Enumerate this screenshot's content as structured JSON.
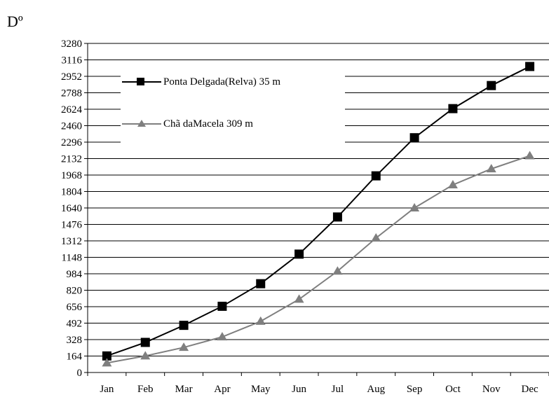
{
  "unit_label": "Dº",
  "legend": {
    "series1": "Ponta Delgada(Relva) 35 m",
    "series2": "Chã daMacela 309 m"
  },
  "chart_data": {
    "type": "line",
    "title": "",
    "xlabel": "",
    "ylabel": "Dº",
    "categories": [
      "Jan",
      "Feb",
      "Mar",
      "Apr",
      "May",
      "Jun",
      "Jul",
      "Aug",
      "Sep",
      "Oct",
      "Nov",
      "Dec"
    ],
    "ylim": [
      0,
      3280
    ],
    "yticks": [
      0,
      164,
      328,
      492,
      656,
      820,
      984,
      1148,
      1312,
      1476,
      1640,
      1804,
      1968,
      2132,
      2296,
      2460,
      2624,
      2788,
      2952,
      3116,
      3280
    ],
    "grid": true,
    "legend_position": "top-left",
    "series": [
      {
        "name": "Ponta Delgada(Relva) 35 m",
        "marker": "square",
        "color": "#000000",
        "values": [
          165,
          300,
          470,
          660,
          885,
          1180,
          1550,
          1960,
          2340,
          2630,
          2860,
          3050
        ]
      },
      {
        "name": "Chã daMacela 309 m",
        "marker": "triangle",
        "color": "#7f7f7f",
        "values": [
          95,
          165,
          250,
          355,
          510,
          730,
          1010,
          1340,
          1640,
          1870,
          2030,
          2160
        ]
      }
    ]
  }
}
